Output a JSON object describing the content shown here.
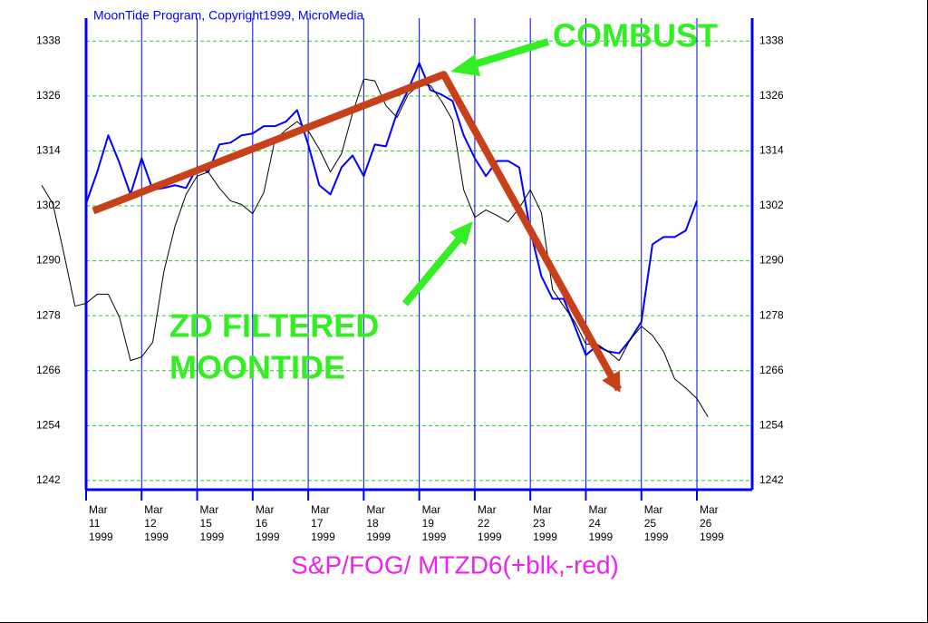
{
  "chart_data": {
    "type": "line",
    "title": "MoonTide Program, Copyright1999, MicroMedia",
    "subtitle": "S&P/FOG/ MTZD6(+blk,-red)",
    "annotations": [
      "COMBUST",
      "ZD FILTERED",
      "MOONTIDE"
    ],
    "categories": [
      [
        "Mar",
        "11",
        "1999"
      ],
      [
        "Mar",
        "12",
        "1999"
      ],
      [
        "Mar",
        "15",
        "1999"
      ],
      [
        "Mar",
        "16",
        "1999"
      ],
      [
        "Mar",
        "17",
        "1999"
      ],
      [
        "Mar",
        "18",
        "1999"
      ],
      [
        "Mar",
        "19",
        "1999"
      ],
      [
        "Mar",
        "22",
        "1999"
      ],
      [
        "Mar",
        "23",
        "1999"
      ],
      [
        "Mar",
        "24",
        "1999"
      ],
      [
        "Mar",
        "25",
        "1999"
      ],
      [
        "Mar",
        "26",
        "1999"
      ]
    ],
    "ylim": [
      1240,
      1343
    ],
    "yticks": [
      1242,
      1254,
      1266,
      1278,
      1290,
      1302,
      1314,
      1326,
      1338
    ],
    "grid": true,
    "series": [
      {
        "color": "#0000ff",
        "width": 2,
        "x": [
          0,
          0.2,
          0.4,
          0.6,
          0.8,
          1,
          1.2,
          1.4,
          1.6,
          1.8,
          2,
          2.2,
          2.4,
          2.6,
          2.8,
          3,
          3.2,
          3.4,
          3.6,
          3.8,
          4,
          4.2,
          4.4,
          4.6,
          4.8,
          5,
          5.2,
          5.4,
          5.6,
          5.8,
          6,
          6.2,
          6.4,
          6.6,
          6.8,
          7,
          7.2,
          7.4,
          7.6,
          7.8,
          8,
          8.2,
          8.4,
          8.6,
          8.8,
          9,
          9.2,
          9.4,
          9.6,
          9.8,
          10,
          10.2,
          10.4,
          10.6,
          10.8,
          11
        ],
        "values": [
          1302.5,
          1309.4,
          1317.4,
          1311.4,
          1304.5,
          1312.4,
          1305.5,
          1305.9,
          1306.5,
          1305.9,
          1310.4,
          1309.4,
          1315.4,
          1315.8,
          1317.4,
          1317.8,
          1319.4,
          1319.4,
          1320.4,
          1322.9,
          1315.4,
          1306.5,
          1304.5,
          1310.4,
          1313,
          1308.5,
          1315.4,
          1315,
          1322.3,
          1327.3,
          1333.2,
          1327.3,
          1326.3,
          1324.9,
          1317.4,
          1312.4,
          1308.5,
          1311.8,
          1311.8,
          1310.4,
          1296.6,
          1286.6,
          1281.7,
          1281.7,
          1275.7,
          1269.4,
          1271.4,
          1270.2,
          1269.8,
          1272.8,
          1276.7,
          1293.6,
          1295.2,
          1295.2,
          1296.6,
          1303.1
        ]
      },
      {
        "color": "#000000",
        "width": 1,
        "x": [
          -0.8,
          -0.6,
          -0.4,
          -0.2,
          0,
          0.2,
          0.4,
          0.6,
          0.8,
          1,
          1.2,
          1.4,
          1.6,
          1.8,
          2,
          2.2,
          2.4,
          2.6,
          2.8,
          3,
          3.2,
          3.4,
          3.6,
          3.8,
          4,
          4.2,
          4.4,
          4.6,
          4.8,
          5,
          5.2,
          5.4,
          5.6,
          5.8,
          6,
          6.2,
          6.4,
          6.6,
          6.8,
          7,
          7.2,
          7.4,
          7.6,
          7.8,
          8,
          8.2,
          8.4,
          8.6,
          8.8,
          9,
          9.2,
          9.4,
          9.6,
          9.8,
          10,
          10.2,
          10.4,
          10.6,
          10.8,
          11,
          11.2
        ],
        "values": [
          1306.5,
          1302.5,
          1291.6,
          1280.1,
          1280.7,
          1282.7,
          1282.7,
          1277.7,
          1268.2,
          1269,
          1272.2,
          1287.6,
          1297.5,
          1304.5,
          1308.5,
          1309.4,
          1305.9,
          1303.1,
          1302.3,
          1300.3,
          1304.9,
          1316.4,
          1318.6,
          1320.4,
          1318.4,
          1314.4,
          1309.4,
          1313.4,
          1322.3,
          1329.7,
          1329.3,
          1323.9,
          1321.3,
          1326.3,
          1328.5,
          1328.3,
          1324.9,
          1320.7,
          1305.5,
          1299.5,
          1301.1,
          1299.9,
          1298.5,
          1301.5,
          1305.5,
          1300.5,
          1283.7,
          1280.1,
          1276.7,
          1271.8,
          1271.8,
          1270.2,
          1268.2,
          1272.8,
          1275.7,
          1273.7,
          1270.2,
          1264.2,
          1262.2,
          1259.9,
          1255.9
        ]
      },
      {
        "color": "#c8401a",
        "width": 8,
        "x": [
          0.13,
          6.44,
          9.59
        ],
        "values": [
          1300.9,
          1330.7,
          1261.9
        ]
      }
    ]
  }
}
